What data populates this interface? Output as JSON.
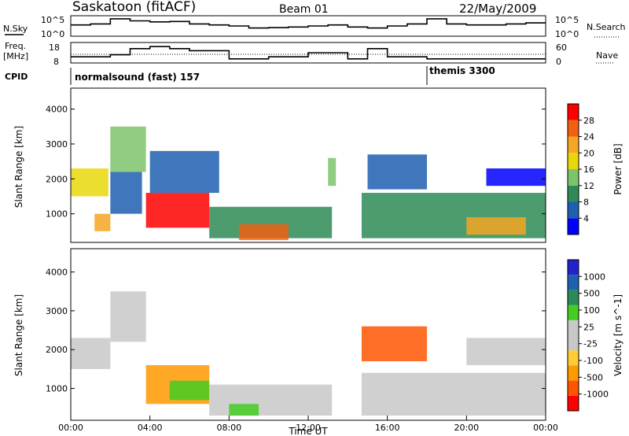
{
  "header": {
    "station": "Saskatoon (fitACF)",
    "beam": "Beam 01",
    "date": "22/May/2009"
  },
  "noise_panel": {
    "left_label": "N.Sky",
    "right_label": "N.Search",
    "left_ticks": [
      "10^5",
      "10^0"
    ],
    "right_ticks": [
      "10^5",
      "10^0"
    ]
  },
  "freq_panel": {
    "left_label_1": "Freq.",
    "left_label_2": "[MHz]",
    "right_label": "Nave",
    "left_ticks": [
      "18",
      "8"
    ],
    "right_ticks": [
      "60",
      "0"
    ]
  },
  "cpid": {
    "label": "CPID",
    "modes": [
      {
        "name": "normalsound (fast) 157",
        "start_hour": 0
      },
      {
        "name": "themis 3300",
        "start_hour": 18.0
      }
    ]
  },
  "colors": {
    "power": [
      "#0000ff",
      "#1e5fb0",
      "#2e8b57",
      "#7cc46a",
      "#e8d80a",
      "#f5a623",
      "#f06010",
      "#ff0000"
    ],
    "velocity": [
      "#ff0000",
      "#ff5500",
      "#ff9900",
      "#ffcc33",
      "#c8c8c8",
      "#c8c8c8",
      "#44cc22",
      "#2a8a5a",
      "#1e60b0",
      "#2222cc"
    ]
  },
  "chart_data": [
    {
      "type": "heatmap",
      "title": "",
      "xlabel": "",
      "ylabel": "Slant Range [km]",
      "xlim_hours": [
        0,
        24
      ],
      "ylim_km": [
        180,
        4600
      ],
      "yticks": [
        "1000",
        "2000",
        "3000",
        "4000"
      ],
      "colorbar": {
        "label": "Power [dB]",
        "ticks": [
          "4",
          "8",
          "12",
          "16",
          "20",
          "24",
          "28"
        ]
      },
      "regions": [
        {
          "t0": 0.0,
          "t1": 1.9,
          "r0": 1500,
          "r1": 2300,
          "level": 4
        },
        {
          "t0": 1.2,
          "t1": 2.0,
          "r0": 500,
          "r1": 1000,
          "level": 5
        },
        {
          "t0": 2.0,
          "t1": 3.8,
          "r0": 2200,
          "r1": 3500,
          "level": 3
        },
        {
          "t0": 2.0,
          "t1": 3.6,
          "r0": 1000,
          "r1": 2200,
          "level": 1
        },
        {
          "t0": 3.8,
          "t1": 7.0,
          "r0": 600,
          "r1": 1600,
          "level": 7
        },
        {
          "t0": 4.0,
          "t1": 7.5,
          "r0": 1600,
          "r1": 2800,
          "level": 1
        },
        {
          "t0": 7.0,
          "t1": 13.2,
          "r0": 300,
          "r1": 1200,
          "level": 2
        },
        {
          "t0": 8.5,
          "t1": 11.0,
          "r0": 250,
          "r1": 700,
          "level": 6
        },
        {
          "t0": 13.0,
          "t1": 13.4,
          "r0": 1800,
          "r1": 2600,
          "level": 3
        },
        {
          "t0": 14.7,
          "t1": 24.0,
          "r0": 300,
          "r1": 1600,
          "level": 2
        },
        {
          "t0": 15.0,
          "t1": 18.0,
          "r0": 1700,
          "r1": 2700,
          "level": 1
        },
        {
          "t0": 20.0,
          "t1": 23.0,
          "r0": 400,
          "r1": 900,
          "level": 5
        },
        {
          "t0": 21.0,
          "t1": 24.0,
          "r0": 1800,
          "r1": 2300,
          "level": 0
        }
      ]
    },
    {
      "type": "heatmap",
      "title": "",
      "xlabel": "Time UT",
      "ylabel": "Slant Range [km]",
      "xlim_hours": [
        0,
        24
      ],
      "ylim_km": [
        180,
        4600
      ],
      "xticks": [
        "00:00",
        "04:00",
        "08:00",
        "12:00",
        "16:00",
        "20:00",
        "00:00"
      ],
      "yticks": [
        "1000",
        "2000",
        "3000",
        "4000"
      ],
      "colorbar": {
        "label": "Velocity [m s^-1]",
        "ticks": [
          "-1000",
          "-500",
          "-100",
          "-25",
          "25",
          "100",
          "500",
          "1000"
        ]
      },
      "regions": [
        {
          "t0": 0.0,
          "t1": 2.0,
          "r0": 1500,
          "r1": 2300,
          "level": 4
        },
        {
          "t0": 2.0,
          "t1": 3.8,
          "r0": 2200,
          "r1": 3500,
          "level": 4
        },
        {
          "t0": 3.8,
          "t1": 7.0,
          "r0": 600,
          "r1": 1600,
          "level": 2
        },
        {
          "t0": 5.0,
          "t1": 7.0,
          "r0": 700,
          "r1": 1200,
          "level": 6
        },
        {
          "t0": 7.0,
          "t1": 13.2,
          "r0": 300,
          "r1": 1100,
          "level": 5
        },
        {
          "t0": 8.0,
          "t1": 9.5,
          "r0": 300,
          "r1": 600,
          "level": 6
        },
        {
          "t0": 14.7,
          "t1": 18.0,
          "r0": 1700,
          "r1": 2600,
          "level": 1
        },
        {
          "t0": 14.7,
          "t1": 24.0,
          "r0": 300,
          "r1": 1400,
          "level": 4
        },
        {
          "t0": 20.0,
          "t1": 24.0,
          "r0": 1600,
          "r1": 2300,
          "level": 5
        }
      ]
    }
  ],
  "noise_data": {
    "sky_level": [
      0.55,
      0.6,
      0.85,
      0.75,
      0.7,
      0.72,
      0.6,
      0.55,
      0.5,
      0.4,
      0.42,
      0.45,
      0.5,
      0.55,
      0.45,
      0.4,
      0.5,
      0.6,
      0.85,
      0.6,
      0.55,
      0.55,
      0.6,
      0.65
    ],
    "frequency_mhz": [
      11,
      11,
      12,
      15,
      16,
      15,
      14,
      14,
      10,
      10,
      11,
      11,
      13,
      13,
      10,
      15,
      11,
      11,
      10,
      10,
      10,
      10,
      10,
      10
    ]
  }
}
